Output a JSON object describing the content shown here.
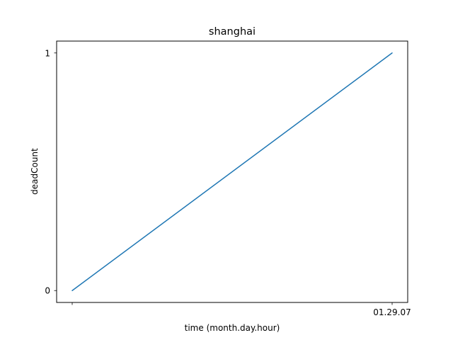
{
  "chart_data": {
    "type": "line",
    "title": "shanghai",
    "xlabel": "time (month.day.hour)",
    "ylabel": "deadCount",
    "x": [
      "",
      "01.29.07"
    ],
    "series": [
      {
        "values": [
          0,
          1
        ],
        "color": "#1f77b4"
      }
    ],
    "y_ticks": [
      0,
      1
    ],
    "ylim": [
      -0.05,
      1.05
    ],
    "grid": false,
    "legend": "none"
  }
}
